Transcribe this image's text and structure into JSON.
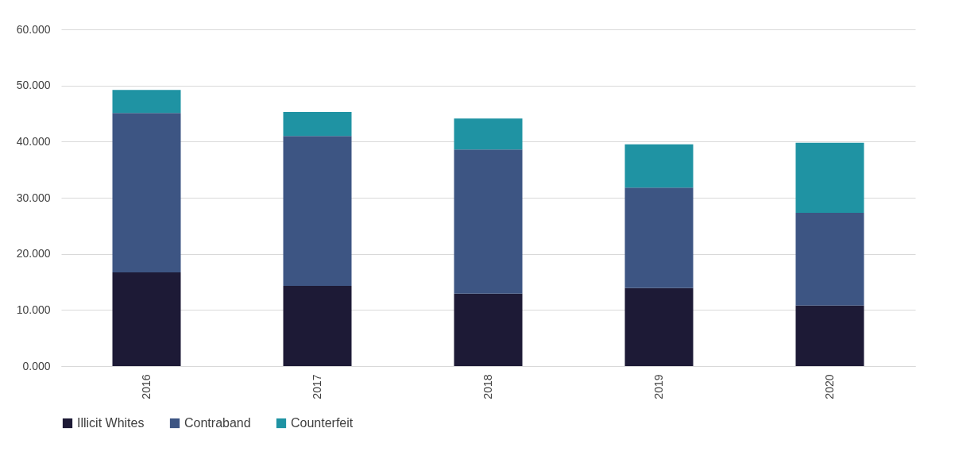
{
  "chart_data": {
    "type": "bar",
    "stacked": true,
    "categories": [
      "2016",
      "2017",
      "2018",
      "2019",
      "2020"
    ],
    "series": [
      {
        "name": "Illicit Whites",
        "color": "#1d1a36",
        "values": [
          16.7,
          14.3,
          12.9,
          13.9,
          10.8
        ]
      },
      {
        "name": "Contraband",
        "color": "#3d5583",
        "values": [
          28.4,
          26.7,
          25.7,
          17.9,
          16.5
        ]
      },
      {
        "name": "Counterfeit",
        "color": "#1f93a3",
        "values": [
          4.1,
          4.3,
          5.5,
          7.7,
          12.5
        ]
      }
    ],
    "ylim": [
      0,
      60
    ],
    "yticks": [
      {
        "value": 0,
        "label": "0.000"
      },
      {
        "value": 10,
        "label": "10.000"
      },
      {
        "value": 20,
        "label": "20.000"
      },
      {
        "value": 30,
        "label": "30.000"
      },
      {
        "value": 40,
        "label": "40.000"
      },
      {
        "value": 50,
        "label": "50.000"
      },
      {
        "value": 60,
        "label": "60.000"
      }
    ],
    "grid": "y",
    "legend": "bottom"
  }
}
